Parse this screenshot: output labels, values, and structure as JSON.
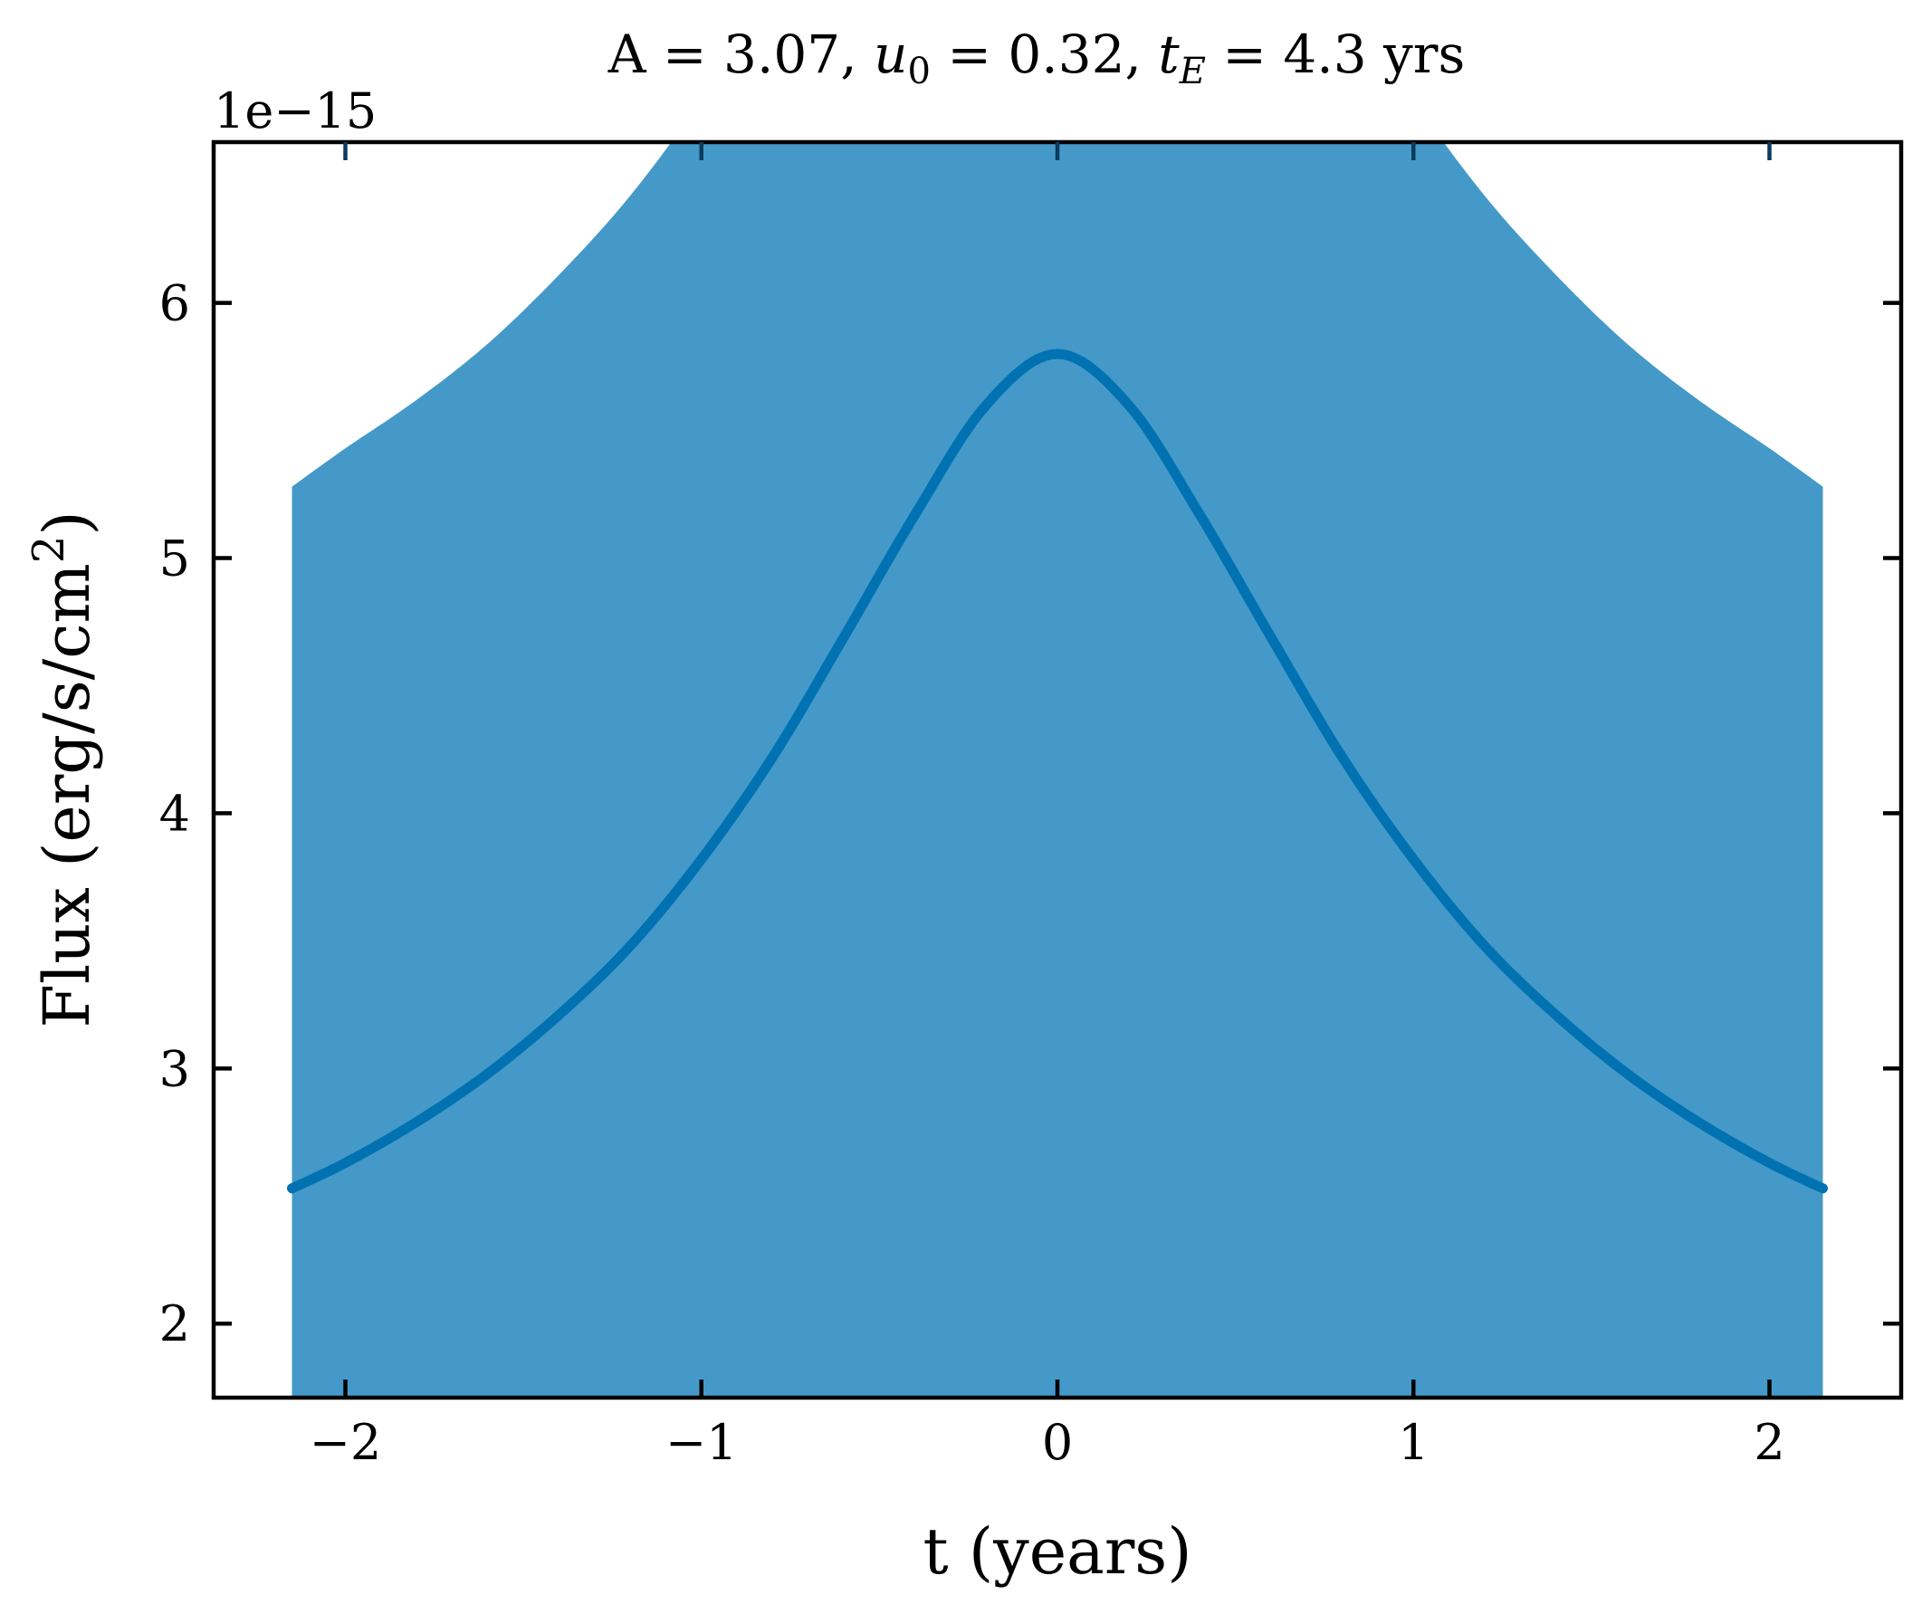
{
  "chart_data": {
    "type": "line",
    "title": {
      "prefix": "A = 3.07, ",
      "u_var": "u",
      "u_sub": "0",
      "u_rest": " = 0.32, ",
      "t_var": "t",
      "t_sub": "E",
      "t_rest": " = 4.3 yrs"
    },
    "xlabel": "t (years)",
    "ylabel": {
      "main": "Flux (erg/s/cm",
      "sup": "2",
      "end": ")"
    },
    "y_offset_label": "1e−15",
    "xlim": [
      -2.37,
      2.37
    ],
    "ylim": [
      1.71,
      6.63
    ],
    "x_ticks": [
      {
        "value": -2,
        "label": "−2"
      },
      {
        "value": -1,
        "label": "−1"
      },
      {
        "value": 0,
        "label": "0"
      },
      {
        "value": 1,
        "label": "1"
      },
      {
        "value": 2,
        "label": "2"
      }
    ],
    "y_ticks": [
      {
        "value": 2,
        "label": "2"
      },
      {
        "value": 3,
        "label": "3"
      },
      {
        "value": 4,
        "label": "4"
      },
      {
        "value": 5,
        "label": "5"
      },
      {
        "value": 6,
        "label": "6"
      }
    ],
    "grid": false,
    "series": [
      {
        "x": [
          -2.15,
          -2.0,
          -1.8,
          -1.6,
          -1.4,
          -1.2,
          -1.0,
          -0.8,
          -0.6,
          -0.4,
          -0.2,
          0.0,
          0.2,
          0.4,
          0.6,
          0.8,
          1.0,
          1.2,
          1.4,
          1.6,
          1.8,
          2.0,
          2.15
        ],
        "y": [
          2.53,
          2.63,
          2.79,
          2.98,
          3.21,
          3.48,
          3.82,
          4.22,
          4.69,
          5.17,
          5.6,
          5.8,
          5.6,
          5.17,
          4.69,
          4.22,
          3.82,
          3.48,
          3.21,
          2.98,
          2.79,
          2.63,
          2.53
        ],
        "band_lower": [
          1.71,
          1.71,
          1.71,
          1.71,
          1.71,
          1.71,
          1.71,
          1.71,
          1.71,
          1.71,
          1.71,
          1.71,
          1.71,
          1.71,
          1.71,
          1.71,
          1.71,
          1.71,
          1.71,
          1.71,
          1.71,
          1.71,
          1.71
        ],
        "band_upper": [
          5.28,
          5.43,
          5.62,
          5.84,
          6.11,
          6.42,
          6.8,
          7.26,
          7.8,
          8.34,
          8.83,
          9.06,
          8.83,
          8.34,
          7.8,
          7.26,
          6.8,
          6.42,
          6.11,
          5.84,
          5.62,
          5.43,
          5.28
        ]
      }
    ],
    "colors": {
      "line": "#0072b2",
      "band": "#4599c8",
      "axes": "#000000",
      "tick_top": "#0a3a5c"
    }
  }
}
